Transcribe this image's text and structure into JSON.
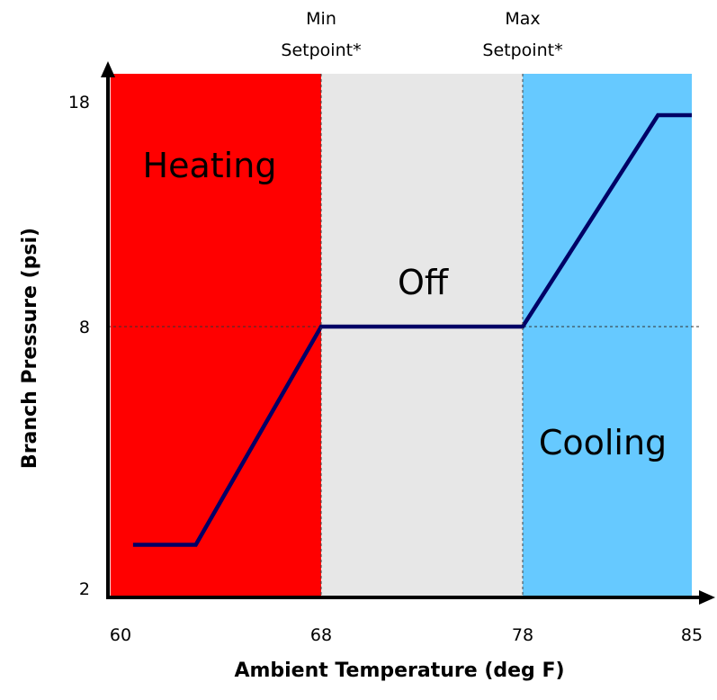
{
  "chart_data": {
    "type": "line",
    "xlabel": "Ambient Temperature (deg F)",
    "ylabel": "Branch Pressure (psi)",
    "xlim": [
      60,
      85
    ],
    "ylim": [
      2,
      18
    ],
    "x_tick_labels": [
      "60",
      "68",
      "78",
      "85"
    ],
    "y_tick_labels": [
      "18",
      "8",
      "2"
    ],
    "regions": [
      {
        "name": "Heating",
        "x_start": 59.6,
        "x_end": 68,
        "color": "#ff0000",
        "label_color": "#ffffff"
      },
      {
        "name": "Off",
        "x_start": 68,
        "x_end": 78,
        "color": "#e7e7e7",
        "label_color": "#000000"
      },
      {
        "name": "Cooling",
        "x_start": 78,
        "x_end": 85,
        "color": "#66c9ff",
        "label_color": "#000000"
      }
    ],
    "markers": [
      {
        "label_line1": "Min",
        "label_line2": "Setpoint*",
        "x": 68
      },
      {
        "label_line1": "Max",
        "label_line2": "Setpoint*",
        "x": 78
      }
    ],
    "series": [
      {
        "color": "#000066",
        "x": [
          60.5,
          63,
          68,
          78,
          83.6,
          85
        ],
        "y": [
          3,
          3,
          8,
          8,
          17.4,
          17.4
        ]
      }
    ],
    "reference_lines": [
      {
        "y": 8,
        "style": "dashed"
      }
    ],
    "grid": false
  }
}
